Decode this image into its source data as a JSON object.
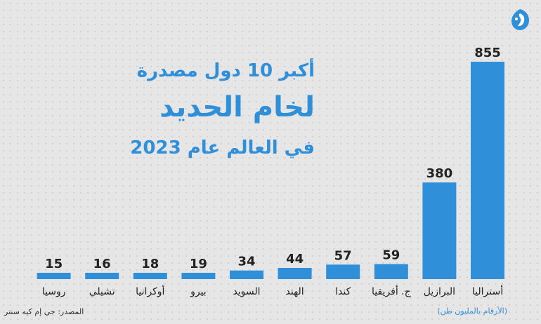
{
  "header": {
    "title_line1": "أكبر 10 دول مصدرة",
    "title_line2": "لخام الحديد",
    "title_line3": "في العالم عام 2023",
    "logo_icon": "al-jazeera-logo-icon"
  },
  "footer": {
    "source": "المصدر: جي إم كيه سنتر",
    "unit_note": "(الأرقام بالمليون طن)"
  },
  "colors": {
    "bar": "#2f8fd8",
    "title": "#2f8fd8",
    "background": "#e6e6e6"
  },
  "chart_data": {
    "type": "bar",
    "categories": [
      "أستراليا",
      "البرازيل",
      "ج. أفريقيا",
      "كندا",
      "الهند",
      "السويد",
      "بيرو",
      "أوكرانيا",
      "تشيلي",
      "روسيا"
    ],
    "values": [
      855,
      380,
      59,
      57,
      44,
      34,
      19,
      18,
      16,
      15
    ],
    "ylim": [
      0,
      855
    ],
    "grid": false,
    "legend": "none",
    "orientation": "categories ordered right-to-left"
  }
}
